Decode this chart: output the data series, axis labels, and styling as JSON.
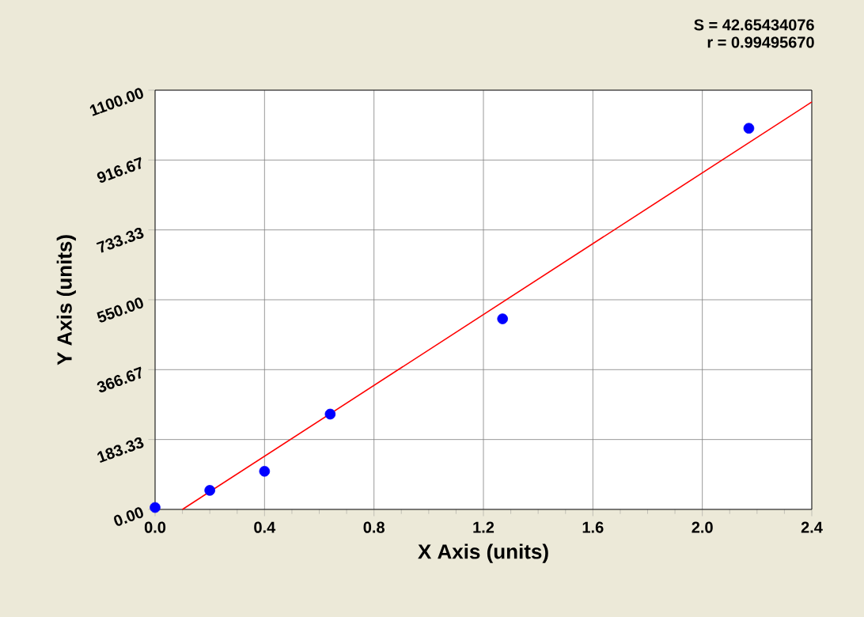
{
  "chart_data": {
    "type": "scatter",
    "xlabel": "X Axis (units)",
    "ylabel": "Y Axis (units)",
    "annotations": [
      "S = 42.65434076",
      "r = 0.99495670"
    ],
    "series": [
      {
        "color": "#0000ff",
        "marker": "circle",
        "x": [
          0.0,
          0.2,
          0.4,
          0.64,
          1.27,
          2.17
        ],
        "values": [
          5,
          50,
          100,
          250,
          500,
          1000
        ]
      },
      {
        "type": "line",
        "color": "#ff0000",
        "marker": "none",
        "x": [
          0.1,
          2.4
        ],
        "values": [
          0,
          1069
        ]
      }
    ],
    "xlim": [
      0,
      2.4
    ],
    "xticks": [
      {
        "value": 0,
        "label": "0.0"
      },
      0.4,
      0.8,
      1.2,
      1.6,
      {
        "value": 2,
        "label": "2.0"
      },
      2.4
    ],
    "ylim": [
      0,
      1100
    ],
    "yticks": [
      {
        "value": 0,
        "label": "0.00"
      },
      183.33,
      366.67,
      {
        "value": 550,
        "label": "550.00"
      },
      733.33,
      916.67,
      {
        "value": 1100,
        "label": "1100.00"
      }
    ],
    "grid": true
  }
}
